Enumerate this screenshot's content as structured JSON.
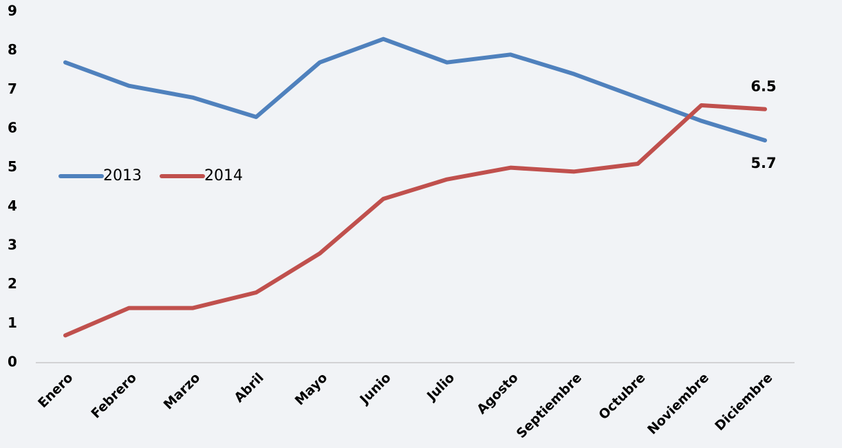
{
  "chart_data": {
    "type": "line",
    "categories": [
      "Enero",
      "Febrero",
      "Marzo",
      "Abril",
      "Mayo",
      "Junio",
      "Julio",
      "Agosto",
      "Septiembre",
      "Octubre",
      "Noviembre",
      "Diciembre"
    ],
    "series": [
      {
        "name": "2013",
        "color": "#4f81bd",
        "values": [
          7.7,
          7.1,
          6.8,
          6.3,
          7.7,
          8.3,
          7.7,
          7.9,
          7.4,
          6.8,
          6.2,
          5.7
        ],
        "value_labels": [
          null,
          null,
          null,
          null,
          null,
          null,
          null,
          null,
          null,
          null,
          null,
          "5.7"
        ]
      },
      {
        "name": "2014",
        "color": "#c0504d",
        "values": [
          0.7,
          1.4,
          1.4,
          1.8,
          2.8,
          4.2,
          4.7,
          5.0,
          4.9,
          5.1,
          6.6,
          6.5
        ],
        "value_labels": [
          null,
          null,
          null,
          null,
          null,
          null,
          null,
          null,
          null,
          null,
          null,
          "6.5"
        ]
      }
    ],
    "ylim": [
      0,
      9
    ],
    "yticks": [
      0,
      1,
      2,
      3,
      4,
      5,
      6,
      7,
      8,
      9
    ],
    "grid": false,
    "legend": "left"
  }
}
